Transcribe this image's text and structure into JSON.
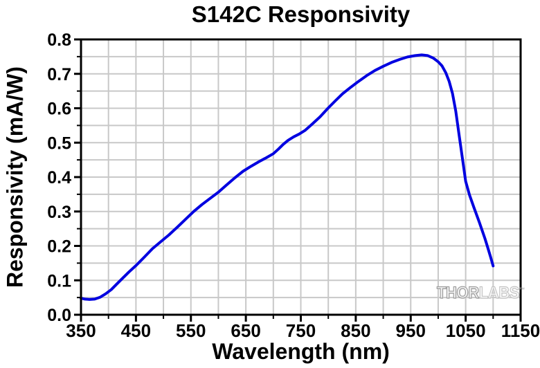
{
  "watermark": {
    "part1": "THOR",
    "part2": "LABS",
    "tm": "™"
  },
  "chart_data": {
    "type": "line",
    "title": "S142C Responsivity",
    "xlabel": "Wavelength (nm)",
    "ylabel": "Responsivity (mA/W)",
    "xlim": [
      350,
      1150
    ],
    "ylim": [
      0.0,
      0.8
    ],
    "x_major_tick_step": 100,
    "x_minor_tick_step": 50,
    "y_major_tick_step": 0.1,
    "y_minor_tick_step": 0.05,
    "grid": "on (minor, both axes)",
    "legend": "none",
    "x_ticks": [
      "350",
      "450",
      "550",
      "650",
      "750",
      "850",
      "950",
      "1050",
      "1150"
    ],
    "y_ticks": [
      "0.0",
      "0.1",
      "0.2",
      "0.3",
      "0.4",
      "0.5",
      "0.6",
      "0.7",
      "0.8"
    ],
    "colors": {
      "line": "#0000e0",
      "grid": "#c8c8c8",
      "axis": "#000000",
      "background": "#ffffff"
    },
    "series": [
      {
        "name": "S142C responsivity curve",
        "points": [
          [
            350,
            0.048
          ],
          [
            357,
            0.0455
          ],
          [
            366,
            0.0445
          ],
          [
            375,
            0.0455
          ],
          [
            385,
            0.051
          ],
          [
            395,
            0.061
          ],
          [
            405,
            0.073
          ],
          [
            415,
            0.089
          ],
          [
            425,
            0.105
          ],
          [
            437,
            0.124
          ],
          [
            450,
            0.143
          ],
          [
            465,
            0.167
          ],
          [
            480,
            0.192
          ],
          [
            495,
            0.212
          ],
          [
            510,
            0.232
          ],
          [
            525,
            0.254
          ],
          [
            540,
            0.277
          ],
          [
            555,
            0.3
          ],
          [
            570,
            0.32
          ],
          [
            585,
            0.338
          ],
          [
            600,
            0.356
          ],
          [
            615,
            0.377
          ],
          [
            630,
            0.398
          ],
          [
            645,
            0.417
          ],
          [
            660,
            0.432
          ],
          [
            674,
            0.445
          ],
          [
            687,
            0.456
          ],
          [
            700,
            0.468
          ],
          [
            709,
            0.481
          ],
          [
            718,
            0.495
          ],
          [
            727,
            0.507
          ],
          [
            737,
            0.517
          ],
          [
            747,
            0.525
          ],
          [
            758,
            0.536
          ],
          [
            770,
            0.553
          ],
          [
            785,
            0.575
          ],
          [
            800,
            0.601
          ],
          [
            813,
            0.622
          ],
          [
            826,
            0.642
          ],
          [
            840,
            0.66
          ],
          [
            855,
            0.678
          ],
          [
            870,
            0.695
          ],
          [
            885,
            0.71
          ],
          [
            900,
            0.722
          ],
          [
            915,
            0.733
          ],
          [
            930,
            0.742
          ],
          [
            944,
            0.749
          ],
          [
            958,
            0.753
          ],
          [
            970,
            0.755
          ],
          [
            981,
            0.753
          ],
          [
            991,
            0.746
          ],
          [
            1000,
            0.735
          ],
          [
            1007,
            0.723
          ],
          [
            1014,
            0.703
          ],
          [
            1020,
            0.678
          ],
          [
            1026,
            0.643
          ],
          [
            1032,
            0.592
          ],
          [
            1038,
            0.523
          ],
          [
            1044,
            0.455
          ],
          [
            1050,
            0.388
          ],
          [
            1057,
            0.348
          ],
          [
            1065,
            0.312
          ],
          [
            1075,
            0.268
          ],
          [
            1085,
            0.222
          ],
          [
            1090,
            0.196
          ],
          [
            1095,
            0.17
          ],
          [
            1100,
            0.142
          ]
        ]
      }
    ]
  }
}
